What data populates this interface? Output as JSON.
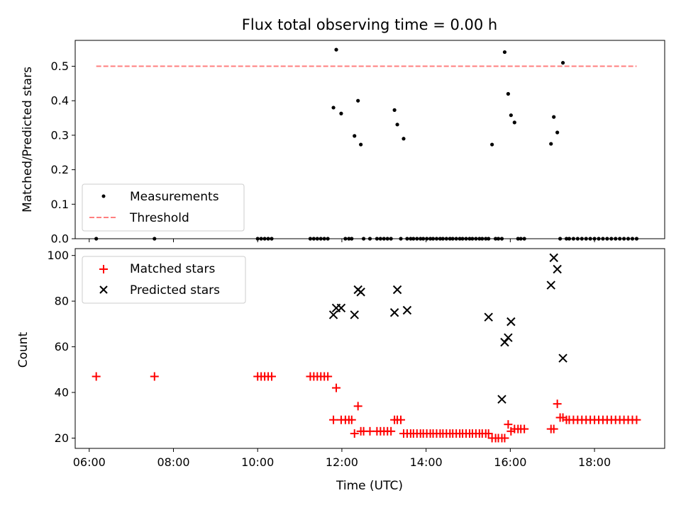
{
  "colors": {
    "measurements": "#000000",
    "threshold": "#ff7f7f",
    "matched": "#ff0000",
    "predicted": "#000000"
  },
  "chart_data": [
    {
      "type": "scatter",
      "title": "Flux total observing time = 0.00 h",
      "xlabel": "",
      "ylabel": "Matched/Predicted stars",
      "xlim": [
        "05:40",
        "19:40"
      ],
      "ylim": [
        0,
        0.575
      ],
      "yticks": [
        "0.0",
        "0.1",
        "0.2",
        "0.3",
        "0.4",
        "0.5"
      ],
      "grid": false,
      "legend_placement": "lower-left",
      "series": [
        {
          "name": "Measurements",
          "kind": "points",
          "x": [
            "06:10",
            "07:33",
            "10:00",
            "10:05",
            "10:10",
            "10:15",
            "10:20",
            "11:15",
            "11:20",
            "11:25",
            "11:30",
            "11:35",
            "11:40",
            "11:48",
            "11:52",
            "11:59",
            "12:05",
            "12:10",
            "12:14",
            "12:18",
            "12:23",
            "12:27",
            "12:31",
            "12:40",
            "12:50",
            "12:55",
            "13:00",
            "13:05",
            "13:10",
            "13:15",
            "13:19",
            "13:24",
            "13:28",
            "13:33",
            "13:38",
            "13:42",
            "13:47",
            "13:52",
            "13:56",
            "14:01",
            "14:06",
            "14:10",
            "14:15",
            "14:20",
            "14:24",
            "14:29",
            "14:34",
            "14:38",
            "14:43",
            "14:48",
            "14:52",
            "14:57",
            "15:02",
            "15:06",
            "15:11",
            "15:16",
            "15:20",
            "15:25",
            "15:29",
            "15:34",
            "15:39",
            "15:43",
            "15:48",
            "15:52",
            "15:57",
            "16:01",
            "16:06",
            "16:11",
            "16:15",
            "16:20",
            "16:58",
            "17:02",
            "17:07",
            "17:11",
            "17:15",
            "17:20",
            "17:24",
            "17:30",
            "17:36",
            "17:42",
            "17:48",
            "17:54",
            "18:00",
            "18:06",
            "18:12",
            "18:18",
            "18:24",
            "18:30",
            "18:36",
            "18:42",
            "18:48",
            "18:54",
            "19:00"
          ],
          "y": [
            0,
            0,
            0,
            0,
            0,
            0,
            0,
            0,
            0,
            0,
            0,
            0,
            0,
            0.38,
            0.548,
            0.363,
            0,
            0,
            0,
            0.298,
            0.4,
            0.273,
            0,
            0,
            0,
            0,
            0,
            0,
            0,
            0.373,
            0.331,
            0,
            0.29,
            0,
            0,
            0,
            0,
            0,
            0,
            0,
            0,
            0,
            0,
            0,
            0,
            0,
            0,
            0,
            0,
            0,
            0,
            0,
            0,
            0,
            0,
            0,
            0,
            0,
            0,
            0.273,
            0,
            0,
            0,
            0.541,
            0.42,
            0.358,
            0.337,
            0,
            0,
            0,
            0.275,
            0.353,
            0.308,
            0,
            0.51,
            0,
            0,
            0,
            0,
            0,
            0,
            0,
            0,
            0,
            0,
            0,
            0,
            0,
            0,
            0,
            0,
            0,
            0
          ]
        },
        {
          "name": "Threshold",
          "kind": "dashed-line",
          "x": [
            "06:10",
            "19:00"
          ],
          "y": [
            0.5,
            0.5
          ]
        }
      ]
    },
    {
      "type": "scatter",
      "title": "",
      "xlabel": "Time (UTC)",
      "ylabel": "Count",
      "xlim": [
        "05:40",
        "19:40"
      ],
      "ylim": [
        15.5,
        103
      ],
      "yticks": [
        "20",
        "40",
        "60",
        "80",
        "100"
      ],
      "xticks": [
        "06:00",
        "08:00",
        "10:00",
        "12:00",
        "14:00",
        "16:00",
        "18:00"
      ],
      "grid": false,
      "legend_placement": "upper-left",
      "series": [
        {
          "name": "Matched stars",
          "marker": "plus",
          "x": [
            "06:10",
            "07:33",
            "10:00",
            "10:05",
            "10:10",
            "10:15",
            "10:20",
            "11:15",
            "11:20",
            "11:25",
            "11:30",
            "11:35",
            "11:40",
            "11:48",
            "11:52",
            "11:59",
            "12:05",
            "12:10",
            "12:14",
            "12:18",
            "12:23",
            "12:27",
            "12:31",
            "12:40",
            "12:50",
            "12:55",
            "13:00",
            "13:05",
            "13:10",
            "13:15",
            "13:19",
            "13:24",
            "13:28",
            "13:33",
            "13:38",
            "13:42",
            "13:47",
            "13:52",
            "13:56",
            "14:01",
            "14:06",
            "14:10",
            "14:15",
            "14:20",
            "14:24",
            "14:29",
            "14:34",
            "14:38",
            "14:43",
            "14:48",
            "14:52",
            "14:57",
            "15:02",
            "15:06",
            "15:11",
            "15:16",
            "15:20",
            "15:25",
            "15:29",
            "15:34",
            "15:39",
            "15:43",
            "15:48",
            "15:52",
            "15:57",
            "16:01",
            "16:06",
            "16:11",
            "16:15",
            "16:20",
            "16:58",
            "17:02",
            "17:07",
            "17:11",
            "17:15",
            "17:20",
            "17:24",
            "17:30",
            "17:36",
            "17:42",
            "17:48",
            "17:54",
            "18:00",
            "18:06",
            "18:12",
            "18:18",
            "18:24",
            "18:30",
            "18:36",
            "18:42",
            "18:48",
            "18:54",
            "19:00"
          ],
          "y": [
            47,
            47,
            47,
            47,
            47,
            47,
            47,
            47,
            47,
            47,
            47,
            47,
            47,
            28,
            42,
            28,
            28,
            28,
            28,
            22,
            34,
            23,
            23,
            23,
            23,
            23,
            23,
            23,
            23,
            28,
            28,
            28,
            22,
            22,
            22,
            22,
            22,
            22,
            22,
            22,
            22,
            22,
            22,
            22,
            22,
            22,
            22,
            22,
            22,
            22,
            22,
            22,
            22,
            22,
            22,
            22,
            22,
            22,
            22,
            20,
            20,
            20,
            20,
            20,
            26,
            23,
            24,
            24,
            24,
            24,
            24,
            24,
            35,
            29,
            29,
            28,
            28,
            28,
            28,
            28,
            28,
            28,
            28,
            28,
            28,
            28,
            28,
            28,
            28,
            28,
            28,
            28,
            28
          ]
        },
        {
          "name": "Predicted stars",
          "marker": "x",
          "x": [
            "11:48",
            "11:52",
            "11:59",
            "12:18",
            "12:23",
            "12:27",
            "13:15",
            "13:19",
            "13:33",
            "15:29",
            "15:48",
            "15:52",
            "15:57",
            "16:01",
            "16:58",
            "17:02",
            "17:07",
            "17:15"
          ],
          "y": [
            74,
            77,
            77,
            74,
            85,
            84,
            75,
            85,
            76,
            73,
            37,
            62,
            64,
            71,
            87,
            99,
            94,
            55
          ]
        }
      ]
    }
  ]
}
